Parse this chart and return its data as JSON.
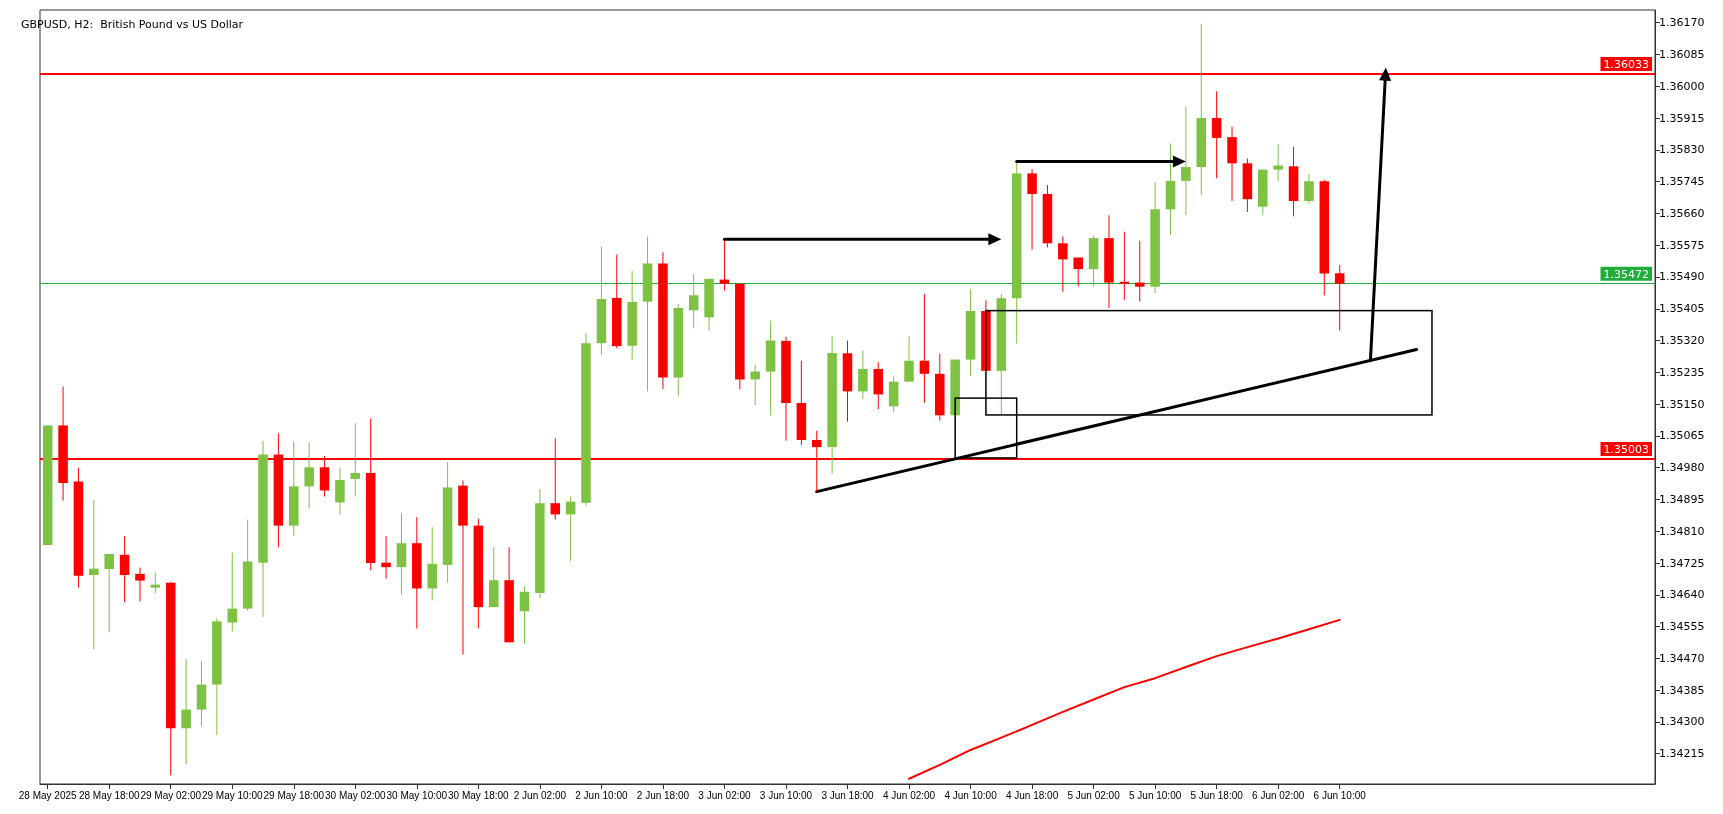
{
  "chart_data": {
    "type": "candlestick",
    "title": "GBPUSD, H2:  British Pound vs US Dollar",
    "categories": [
      "28 May 2025",
      null,
      null,
      null,
      "28 May 18:00",
      null,
      null,
      null,
      "29 May 02:00",
      null,
      null,
      null,
      "29 May 10:00",
      null,
      null,
      null,
      "29 May 18:00",
      null,
      null,
      null,
      "30 May 02:00",
      null,
      null,
      null,
      "30 May 10:00",
      null,
      null,
      null,
      "30 May 18:00",
      null,
      null,
      null,
      "2 Jun 02:00",
      null,
      null,
      null,
      "2 Jun 10:00",
      null,
      null,
      null,
      "2 Jun 18:00",
      null,
      null,
      null,
      "3 Jun 02:00",
      null,
      null,
      null,
      "3 Jun 10:00",
      null,
      null,
      null,
      "3 Jun 18:00",
      null,
      null,
      null,
      "4 Jun 02:00",
      null,
      null,
      null,
      "4 Jun 10:00",
      null,
      null,
      null,
      "4 Jun 18:00",
      null,
      null,
      null,
      "5 Jun 02:00",
      null,
      null,
      null,
      "5 Jun 10:00",
      null,
      null,
      null,
      "5 Jun 18:00",
      null,
      null,
      null,
      "6 Jun 02:00",
      null,
      null,
      null,
      "6 Jun 10:00",
      null,
      null,
      null,
      null,
      null,
      null,
      null,
      null,
      null,
      null,
      null,
      null,
      null,
      null,
      null,
      null,
      null,
      null,
      null,
      null
    ],
    "ohlc": [
      [
        1.34773,
        1.35093,
        1.34773,
        1.35093
      ],
      [
        1.35093,
        1.35197,
        1.34892,
        1.34939
      ],
      [
        1.34943,
        1.3498,
        1.34659,
        1.34691
      ],
      [
        1.34693,
        1.34894,
        1.34494,
        1.3471
      ],
      [
        1.34709,
        1.34749,
        1.3454,
        1.34749
      ],
      [
        1.34747,
        1.34797,
        1.3462,
        1.34693
      ],
      [
        1.34696,
        1.34713,
        1.34622,
        1.34678
      ],
      [
        1.34659,
        1.34699,
        1.34645,
        1.34667
      ],
      [
        1.34672,
        1.34675,
        1.34157,
        1.34283
      ],
      [
        1.34283,
        1.34469,
        1.34187,
        1.34333
      ],
      [
        1.34333,
        1.34464,
        1.34288,
        1.344
      ],
      [
        1.344,
        1.34577,
        1.34265,
        1.34569
      ],
      [
        1.34566,
        1.34753,
        1.34542,
        1.34603
      ],
      [
        1.34603,
        1.34841,
        1.34598,
        1.34729
      ],
      [
        1.34726,
        1.35052,
        1.34581,
        1.35015
      ],
      [
        1.35015,
        1.35072,
        1.34767,
        1.34825
      ],
      [
        1.34825,
        1.3505,
        1.34798,
        1.3493
      ],
      [
        1.3493,
        1.35048,
        1.34871,
        1.34981
      ],
      [
        1.34981,
        1.35011,
        1.34903,
        1.34919
      ],
      [
        1.34887,
        1.3498,
        1.34855,
        1.34947
      ],
      [
        1.3495,
        1.35099,
        1.34903,
        1.34966
      ],
      [
        1.34966,
        1.35111,
        1.34706,
        1.34725
      ],
      [
        1.34726,
        1.34797,
        1.34683,
        1.34714
      ],
      [
        1.34714,
        1.34858,
        1.34641,
        1.34778
      ],
      [
        1.34778,
        1.34848,
        1.3455,
        1.34657
      ],
      [
        1.34657,
        1.34821,
        1.34625,
        1.34723
      ],
      [
        1.3472,
        1.34995,
        1.34672,
        1.34927
      ],
      [
        1.34932,
        1.34946,
        1.3448,
        1.34825
      ],
      [
        1.34825,
        1.34844,
        1.3455,
        1.34607
      ],
      [
        1.34607,
        1.34767,
        1.34607,
        1.34679
      ],
      [
        1.34679,
        1.34767,
        1.34513,
        1.34513
      ],
      [
        1.34596,
        1.34662,
        1.34509,
        1.34648
      ],
      [
        1.34645,
        1.34923,
        1.34631,
        1.34885
      ],
      [
        1.34885,
        1.35059,
        1.34841,
        1.34855
      ],
      [
        1.34855,
        1.34903,
        1.3473,
        1.34889
      ],
      [
        1.34886,
        1.3534,
        1.34878,
        1.35313
      ],
      [
        1.35313,
        1.35572,
        1.35282,
        1.35431
      ],
      [
        1.35434,
        1.3555,
        1.35299,
        1.35305
      ],
      [
        1.35306,
        1.35506,
        1.35268,
        1.35423
      ],
      [
        1.35424,
        1.35598,
        1.35184,
        1.35526
      ],
      [
        1.35526,
        1.35556,
        1.3519,
        1.35221
      ],
      [
        1.35221,
        1.35418,
        1.35171,
        1.35407
      ],
      [
        1.35401,
        1.35498,
        1.35353,
        1.35441
      ],
      [
        1.35382,
        1.35485,
        1.35347,
        1.35485
      ],
      [
        1.35483,
        1.35591,
        1.35454,
        1.35472
      ],
      [
        1.35472,
        1.35472,
        1.3519,
        1.35216
      ],
      [
        1.35216,
        1.35255,
        1.35147,
        1.35237
      ],
      [
        1.35237,
        1.35373,
        1.3512,
        1.3532
      ],
      [
        1.35319,
        1.3533,
        1.35052,
        1.35153
      ],
      [
        1.35153,
        1.35266,
        1.35041,
        1.35054
      ],
      [
        1.35054,
        1.35079,
        1.34916,
        1.35035
      ],
      [
        1.35035,
        1.35332,
        1.34964,
        1.35287
      ],
      [
        1.35286,
        1.3532,
        1.35103,
        1.35184
      ],
      [
        1.35184,
        1.35293,
        1.35163,
        1.35244
      ],
      [
        1.35244,
        1.35262,
        1.35136,
        1.35176
      ],
      [
        1.35144,
        1.35224,
        1.35129,
        1.3521
      ],
      [
        1.3521,
        1.35332,
        1.3521,
        1.35266
      ],
      [
        1.35266,
        1.35445,
        1.35153,
        1.35231
      ],
      [
        1.35231,
        1.35285,
        1.35106,
        1.3512
      ],
      [
        1.3512,
        1.35269,
        1.3512,
        1.35269
      ],
      [
        1.35269,
        1.35458,
        1.35225,
        1.35399
      ],
      [
        1.35399,
        1.35428,
        1.35239,
        1.35239
      ],
      [
        1.35239,
        1.35445,
        1.35122,
        1.35433
      ],
      [
        1.35433,
        1.35797,
        1.35312,
        1.35767
      ],
      [
        1.35767,
        1.35778,
        1.35563,
        1.35712
      ],
      [
        1.35712,
        1.35736,
        1.35569,
        1.3558
      ],
      [
        1.3558,
        1.35598,
        1.3545,
        1.35537
      ],
      [
        1.35542,
        1.35542,
        1.35465,
        1.35511
      ],
      [
        1.35511,
        1.35601,
        1.35465,
        1.35594
      ],
      [
        1.35594,
        1.35655,
        1.35407,
        1.35475
      ],
      [
        1.35477,
        1.35611,
        1.35429,
        1.35472
      ],
      [
        1.35475,
        1.35587,
        1.35424,
        1.35464
      ],
      [
        1.35464,
        1.35743,
        1.35447,
        1.35671
      ],
      [
        1.35671,
        1.35847,
        1.35602,
        1.35747
      ],
      [
        1.35747,
        1.35944,
        1.35656,
        1.35784
      ],
      [
        1.35784,
        1.36167,
        1.35709,
        1.35915
      ],
      [
        1.35915,
        1.35987,
        1.35754,
        1.35862
      ],
      [
        1.35864,
        1.35892,
        1.35693,
        1.35794
      ],
      [
        1.35794,
        1.35807,
        1.35664,
        1.35698
      ],
      [
        1.35678,
        1.35777,
        1.35656,
        1.35777
      ],
      [
        1.35777,
        1.35846,
        1.35746,
        1.35788
      ],
      [
        1.35786,
        1.35838,
        1.35652,
        1.35693
      ],
      [
        1.35693,
        1.35766,
        1.35685,
        1.35746
      ],
      [
        1.35746,
        1.3575,
        1.35441,
        1.35499
      ],
      [
        1.355,
        1.35522,
        1.35347,
        1.35472
      ],
      null,
      null,
      null,
      null,
      null,
      null,
      null,
      null,
      null,
      null,
      null,
      null,
      null,
      null,
      null,
      null,
      null,
      null,
      null,
      null
    ],
    "series": [
      {
        "type": "line",
        "color": "#ff0000",
        "values": [
          null,
          null,
          null,
          null,
          null,
          null,
          null,
          null,
          null,
          null,
          null,
          null,
          null,
          null,
          null,
          null,
          null,
          null,
          null,
          null,
          null,
          null,
          null,
          null,
          null,
          null,
          null,
          null,
          null,
          null,
          null,
          null,
          null,
          null,
          null,
          null,
          null,
          null,
          null,
          null,
          null,
          null,
          null,
          null,
          null,
          null,
          null,
          null,
          null,
          null,
          null,
          null,
          null,
          null,
          null,
          null,
          1.34148,
          null,
          1.34185,
          null,
          1.34225,
          null,
          1.34258,
          null,
          1.34292,
          null,
          1.34327,
          null,
          1.3436,
          null,
          1.34393,
          null,
          1.34417,
          null,
          1.34447,
          null,
          1.34476,
          null,
          1.345,
          null,
          1.34523,
          null,
          1.34548,
          null,
          1.34573,
          null,
          null,
          null,
          null,
          null,
          null,
          null,
          null,
          null,
          null,
          null,
          null,
          null,
          null,
          null,
          null,
          null,
          null,
          null,
          null
        ]
      },
      {
        "type": "line",
        "color": "#000000",
        "values": [
          null,
          null,
          null,
          null,
          null,
          null,
          null,
          null,
          null,
          null,
          null,
          null,
          null,
          null,
          null,
          null,
          null,
          null,
          null,
          null,
          null,
          null,
          null,
          null,
          null,
          null,
          null,
          null,
          null,
          null,
          null,
          null,
          null,
          null,
          null,
          null,
          null,
          null,
          null,
          null,
          null,
          null,
          null,
          null,
          null,
          null,
          null,
          null,
          null,
          null,
          1.34916,
          null,
          null,
          null,
          null,
          null,
          null,
          null,
          null,
          null,
          null,
          null,
          null,
          null,
          null,
          null,
          null,
          null,
          null,
          null,
          null,
          null,
          null,
          null,
          null,
          null,
          null,
          null,
          null,
          null,
          null,
          null,
          null,
          null,
          null,
          null,
          null,
          null,
          null,
          1.35296,
          null,
          null,
          null,
          null,
          null,
          null,
          null,
          null,
          null,
          null,
          null,
          null,
          null,
          null,
          null
        ]
      }
    ],
    "ylim": [
      1.34134,
      1.36204
    ],
    "yticks": [
      1.34215,
      {
        "value": 1.343,
        "label": "1.34300"
      },
      1.34385,
      {
        "value": 1.3447,
        "label": "1.34470"
      },
      1.34555,
      {
        "value": 1.3464,
        "label": "1.34640"
      },
      1.34725,
      {
        "value": 1.3481,
        "label": "1.34810"
      },
      1.34895,
      {
        "value": 1.3498,
        "label": "1.34980"
      },
      1.35065,
      {
        "value": 1.3515,
        "label": "1.35150"
      },
      1.35235,
      {
        "value": 1.3532,
        "label": "1.35320"
      },
      1.35405,
      {
        "value": 1.3549,
        "label": "1.35490"
      },
      1.35575,
      {
        "value": 1.3566,
        "label": "1.35660"
      },
      1.35745,
      {
        "value": 1.3583,
        "label": "1.35830"
      },
      1.35915,
      {
        "value": 1.36,
        "label": "1.36000"
      },
      1.36085,
      {
        "value": 1.3617,
        "label": "1.36170"
      }
    ],
    "ref_lines": [
      {
        "axis": "y",
        "value": 1.36033,
        "label": "1.36033",
        "color": "#ff0000"
      },
      {
        "axis": "y",
        "value": 1.35472,
        "label": "1.35472",
        "color": "#1fae3a"
      },
      {
        "axis": "y",
        "value": 1.35003,
        "label": "1.35003",
        "color": "#ff0000"
      }
    ]
  }
}
